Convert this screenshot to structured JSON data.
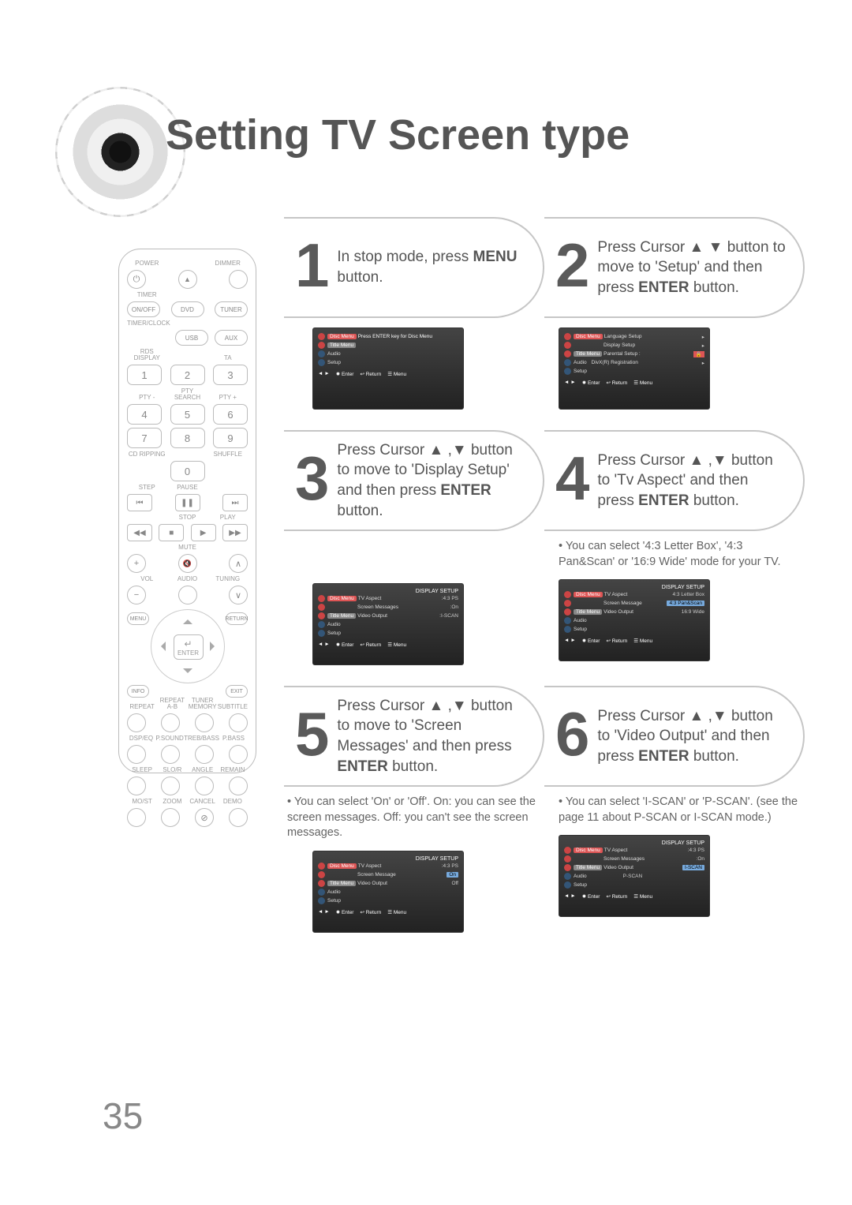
{
  "title": "Setting TV Screen type",
  "page_number": "35",
  "accent_colors": {
    "step_border": "#c6c6c6",
    "num": "#5a5a5a",
    "screen_bg": "#2b2b2b"
  },
  "remote": {
    "power": "POWER",
    "dimmer": "DIMMER",
    "timer": "TIMER",
    "row1": [
      "ON/OFF",
      "DVD",
      "TUNER"
    ],
    "row1_lbl": "TIMER/CLOCK",
    "row2": [
      "USB",
      "AUX"
    ],
    "row3_lbl_l": "RDS DISPLAY",
    "row3_lbl_r": "TA",
    "nums": [
      "1",
      "2",
      "3",
      "4",
      "5",
      "6",
      "7",
      "8",
      "9",
      "0"
    ],
    "num_lbls": [
      "PTY -",
      "PTY SEARCH",
      "PTY +"
    ],
    "cd": "CD RIPPING",
    "shuffle": "SHUFFLE",
    "play_lbls": [
      "STEP",
      "PAUSE",
      "STOP",
      "PLAY"
    ],
    "mute": "MUTE",
    "vol": "VOL",
    "audio": "AUDIO",
    "tuning": "TUNING",
    "corners": [
      "MENU",
      "RETURN",
      "INFO",
      "EXIT"
    ],
    "enter": "ENTER",
    "bottom_lbls": [
      "REPEAT",
      "REPEAT A-B",
      "TUNER MEMORY",
      "SUBTITLE"
    ],
    "bottom2_lbls": [
      "DSP/EQ",
      "P.SOUND",
      "TREB/BASS",
      "P.BASS"
    ],
    "bottom3_lbls": [
      "SLEEP",
      "SLO/R",
      "ANGLE",
      "REMAIN"
    ],
    "bottom4_lbls": [
      "MO/ST",
      "ZOOM",
      "CANCEL",
      "DEMO"
    ]
  },
  "steps": [
    {
      "n": "1",
      "html": "In stop mode, press <b>MENU</b>  button."
    },
    {
      "n": "2",
      "html": "Press Cursor ▲ ▼ button to move to 'Setup' and then press <b>ENTER</b> button."
    },
    {
      "n": "3",
      "html": "Press Cursor ▲ ,▼ button to move to 'Display Setup' and then press <b>ENTER</b> button."
    },
    {
      "n": "4",
      "html": "Press Cursor ▲ ,▼ button to 'Tv Aspect' and then press <b>ENTER</b> button."
    },
    {
      "n": "5",
      "html": "Press Cursor ▲ ,▼ button to move to 'Screen Messages' and then press <b>ENTER</b> button."
    },
    {
      "n": "6",
      "html": "Press Cursor ▲ ,▼ button to 'Video Output' and then press <b>ENTER</b> button."
    }
  ],
  "notes": {
    "s4": "• You can select '4:3 Letter Box', '4:3 Pan&Scan' or '16:9 Wide' mode for your TV.",
    "s5": "• You can select 'On' or 'Off'. On: you can see the screen messages. Off: you can't see the screen messages.",
    "s6": "• You can select 'I-SCAN' or 'P-SCAN'. (see the page 11 about P-SCAN or I-SCAN mode.)"
  },
  "screens": {
    "footer": [
      "◄ ► ",
      "✹ Enter",
      "↩ Return",
      "☰ Menu"
    ],
    "setup_head": "DISPLAY SETUP",
    "s1": {
      "tabs": [
        "Disc Menu",
        "Title Menu",
        "Audio",
        "Setup"
      ],
      "center": "Press ENTER key for Disc Menu"
    },
    "s2": {
      "items": [
        "Language Setup",
        "Display Setup",
        "Parental Setup :",
        "DivX(R) Registration"
      ],
      "tabs": [
        "Disc Menu",
        "Title Menu",
        "Audio",
        "Setup"
      ]
    },
    "s3": {
      "items": [
        [
          "TV Aspect",
          ":4:3 PS"
        ],
        [
          "Screen Messages",
          ":On"
        ],
        [
          "Video Output",
          ":I-SCAN"
        ]
      ],
      "tabs": [
        "Disc Menu",
        "Title Menu",
        "Audio",
        "Setup"
      ]
    },
    "s4": {
      "items": [
        [
          "TV Aspect",
          ""
        ],
        [
          "Screen Message",
          ""
        ],
        [
          "Video Output",
          ""
        ]
      ],
      "options": [
        "4:3 Letter Box",
        "4:3 Pan&Scan",
        "16:9 Wide"
      ],
      "sel": 1,
      "tabs": [
        "Disc Menu",
        "Title Menu",
        "Audio",
        "Setup"
      ]
    },
    "s5": {
      "items": [
        [
          "TV Aspect",
          ":4:3 PS"
        ],
        [
          "Screen Message",
          ""
        ],
        [
          "Video Output",
          ""
        ]
      ],
      "options": [
        "On",
        "Off"
      ],
      "sel": 0,
      "tabs": [
        "Disc Menu",
        "Title Menu",
        "Audio",
        "Setup"
      ]
    },
    "s6": {
      "items": [
        [
          "TV Aspect",
          ":4:3 PS"
        ],
        [
          "Screen Messages",
          ":On"
        ],
        [
          "Video Output",
          ""
        ]
      ],
      "options": [
        "I-SCAN",
        "P-SCAN"
      ],
      "sel": 0,
      "tabs": [
        "Disc Menu",
        "Title Menu",
        "Audio",
        "Setup"
      ]
    }
  }
}
